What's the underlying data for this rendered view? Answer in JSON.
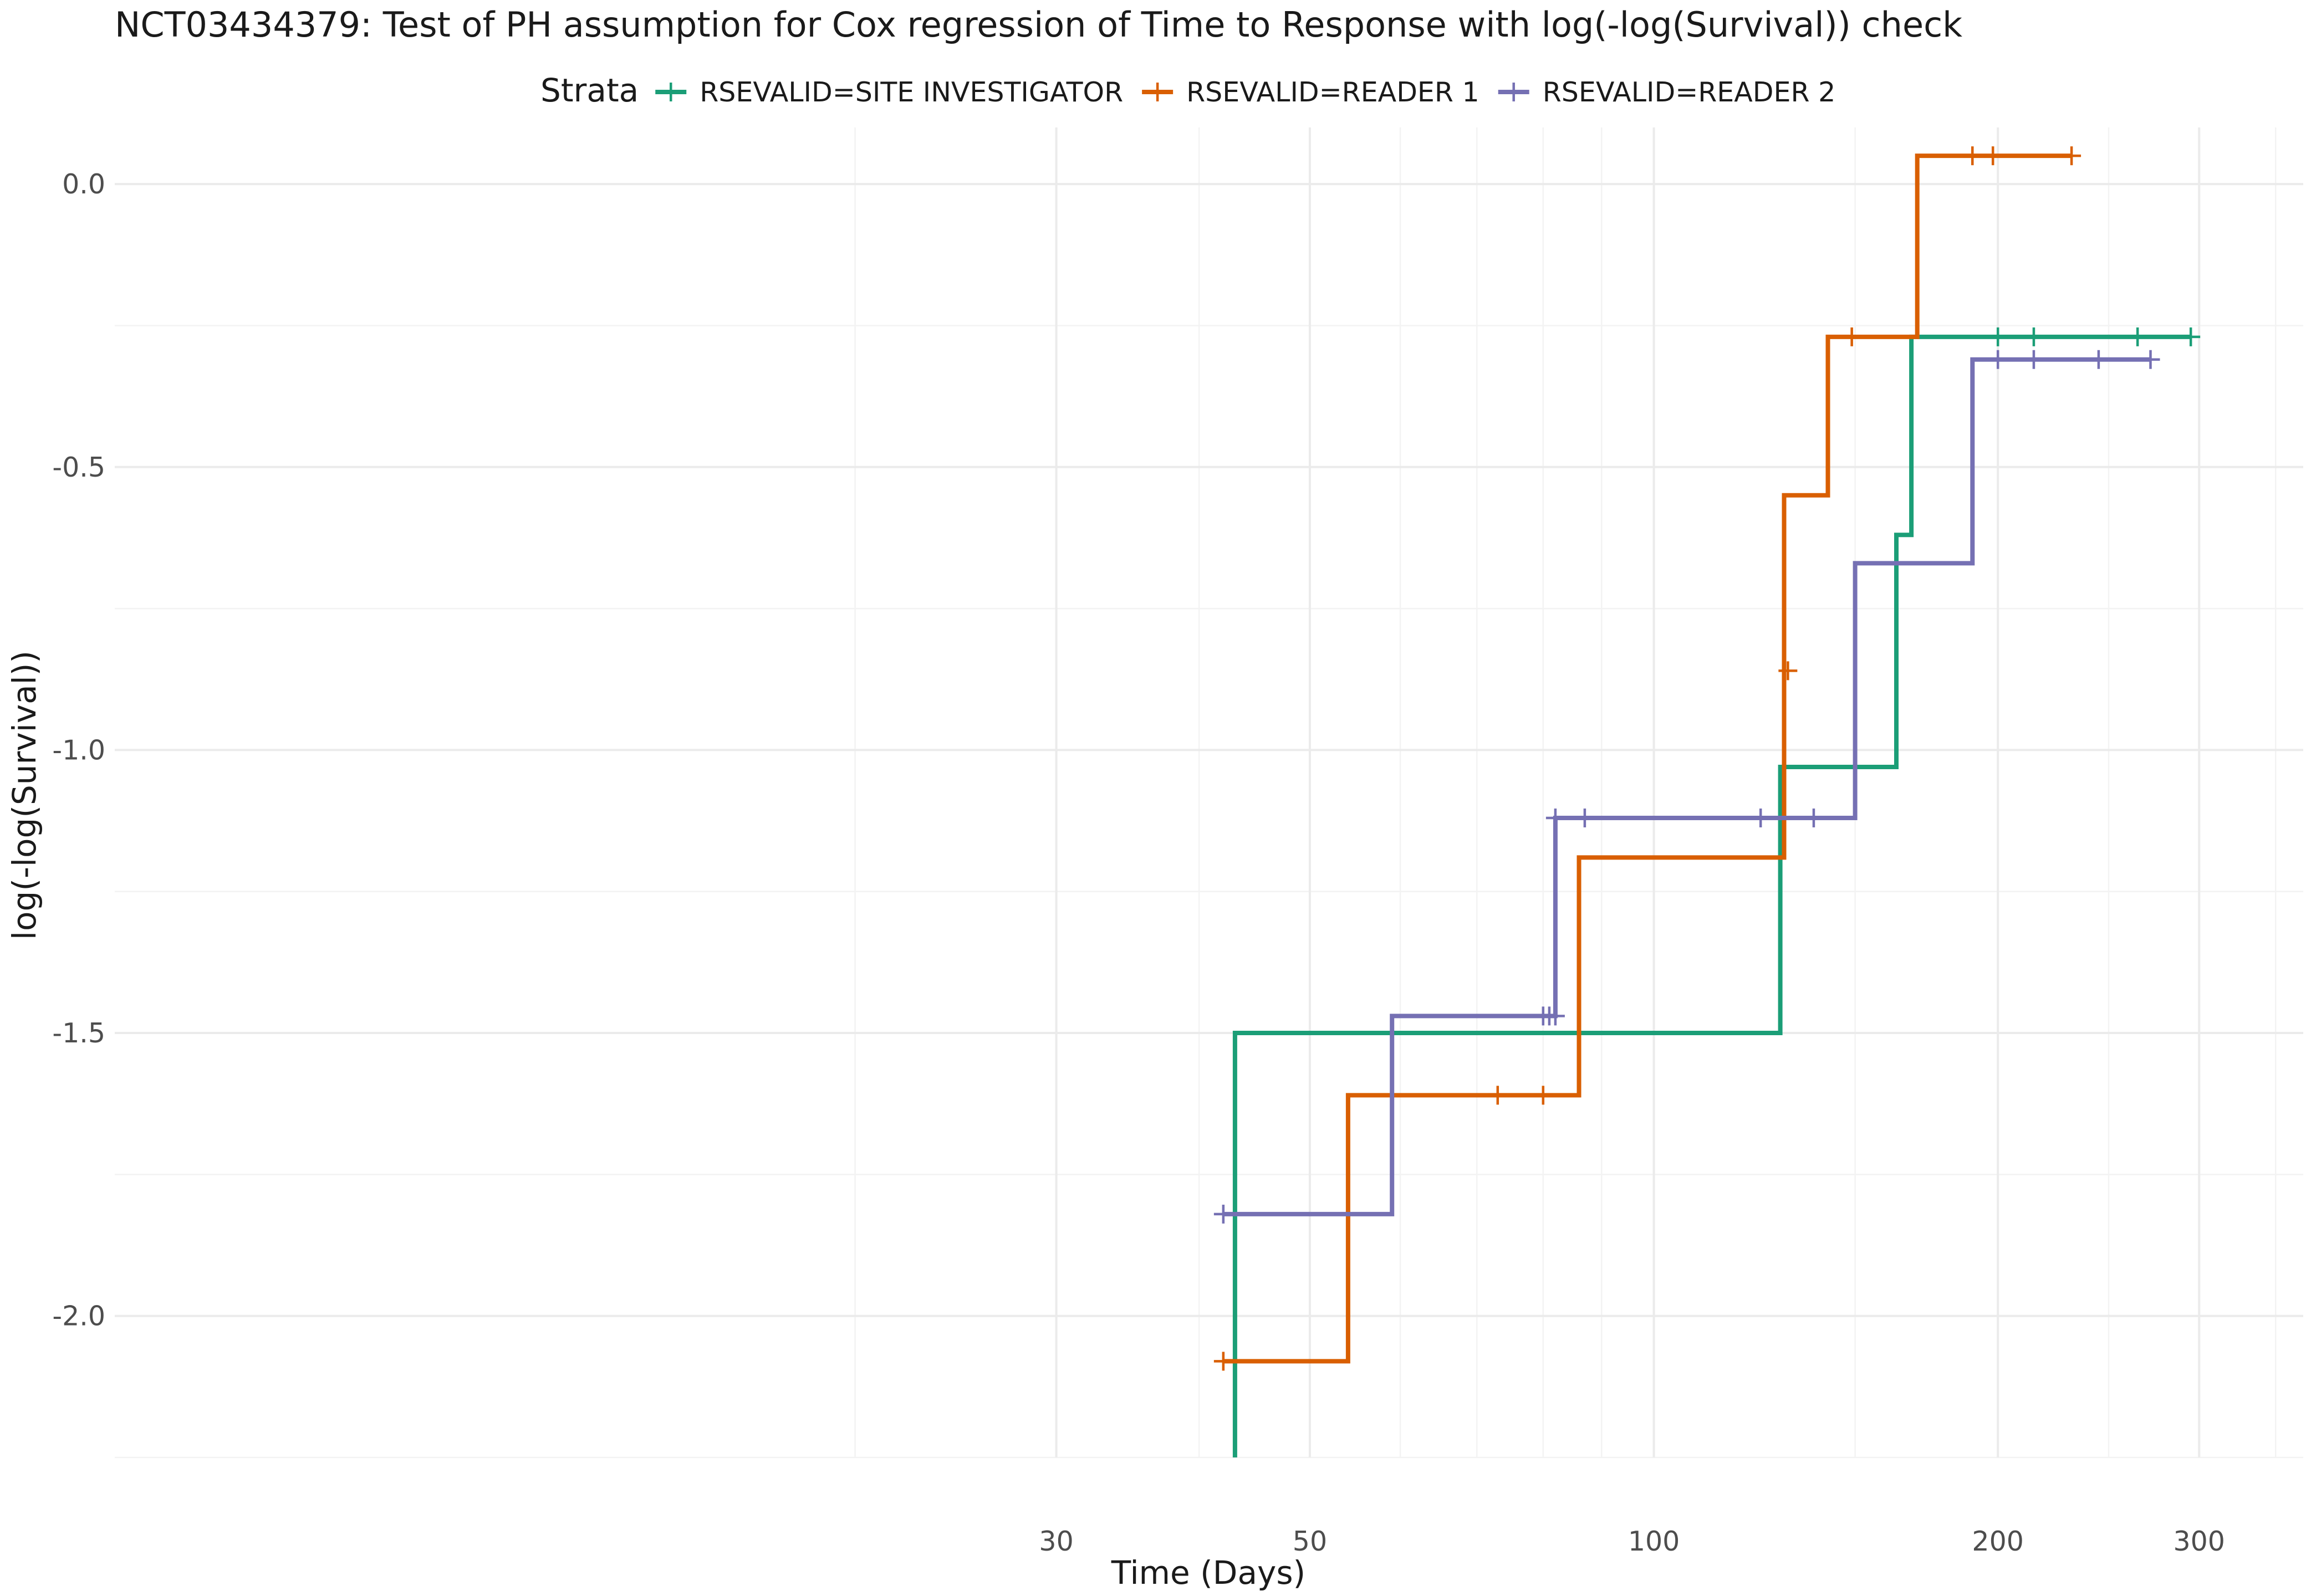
{
  "chart_data": {
    "type": "line",
    "title": "NCT03434379: Test of PH assumption for Cox regression of Time to Response with log(-log(Survival)) check",
    "xlabel": "Time (Days)",
    "ylabel": "log(-log(Survival))",
    "x_scale": "log10",
    "xlim": [
      4.5,
      370
    ],
    "ylim": [
      -2.25,
      0.1
    ],
    "x_ticks": [
      30,
      50,
      100,
      200,
      300
    ],
    "x_tick_labels": [
      "30",
      "50",
      "100",
      "200",
      "300"
    ],
    "x_minor_grid": [
      20,
      40,
      60,
      70,
      80,
      90,
      150,
      250,
      350
    ],
    "y_ticks": [
      0.0,
      -0.5,
      -1.0,
      -1.5,
      -2.0
    ],
    "y_tick_labels": [
      "0.0",
      "-0.5",
      "-1.0",
      "-1.5",
      "-2.0"
    ],
    "y_minor_grid": [
      -0.25,
      -0.75,
      -1.25,
      -1.75,
      -2.25
    ],
    "grid": true,
    "legend": {
      "title": "Strata",
      "position": "top"
    },
    "series": [
      {
        "name": "RSEVALID=SITE INVESTIGATOR",
        "color": "#1b9e77",
        "step": [
          [
            43,
            -2.25
          ],
          [
            43,
            -1.5
          ],
          [
            129,
            -1.5
          ],
          [
            129,
            -1.03
          ],
          [
            163,
            -1.03
          ],
          [
            163,
            -0.62
          ],
          [
            168,
            -0.62
          ],
          [
            168,
            -0.27
          ],
          [
            295,
            -0.27
          ]
        ],
        "censored": [
          [
            200,
            -0.27
          ],
          [
            215,
            -0.27
          ],
          [
            265,
            -0.27
          ],
          [
            295,
            -0.27
          ]
        ]
      },
      {
        "name": "RSEVALID=READER 1",
        "color": "#d95f02",
        "step": [
          [
            42,
            -2.08
          ],
          [
            54,
            -2.08
          ],
          [
            54,
            -1.61
          ],
          [
            86,
            -1.61
          ],
          [
            86,
            -1.19
          ],
          [
            130,
            -1.19
          ],
          [
            130,
            -0.55
          ],
          [
            142,
            -0.55
          ],
          [
            142,
            -0.27
          ],
          [
            170,
            -0.27
          ],
          [
            170,
            0.05
          ],
          [
            232,
            0.05
          ]
        ],
        "censored": [
          [
            42,
            -2.08
          ],
          [
            73,
            -1.61
          ],
          [
            80,
            -1.61
          ],
          [
            131,
            -0.86
          ],
          [
            149,
            -0.27
          ],
          [
            190,
            0.05
          ],
          [
            198,
            0.05
          ],
          [
            232,
            0.05
          ]
        ]
      },
      {
        "name": "RSEVALID=READER 2",
        "color": "#7570b3",
        "step": [
          [
            42,
            -1.82
          ],
          [
            59,
            -1.82
          ],
          [
            59,
            -1.47
          ],
          [
            82,
            -1.47
          ],
          [
            82,
            -1.12
          ],
          [
            150,
            -1.12
          ],
          [
            150,
            -0.67
          ],
          [
            190,
            -0.67
          ],
          [
            190,
            -0.31
          ],
          [
            272,
            -0.31
          ]
        ],
        "censored": [
          [
            42,
            -1.82
          ],
          [
            80,
            -1.47
          ],
          [
            81,
            -1.47
          ],
          [
            82,
            -1.47
          ],
          [
            82,
            -1.12
          ],
          [
            87,
            -1.12
          ],
          [
            124,
            -1.12
          ],
          [
            138,
            -1.12
          ],
          [
            200,
            -0.31
          ],
          [
            215,
            -0.31
          ],
          [
            245,
            -0.31
          ],
          [
            272,
            -0.31
          ]
        ]
      }
    ]
  }
}
